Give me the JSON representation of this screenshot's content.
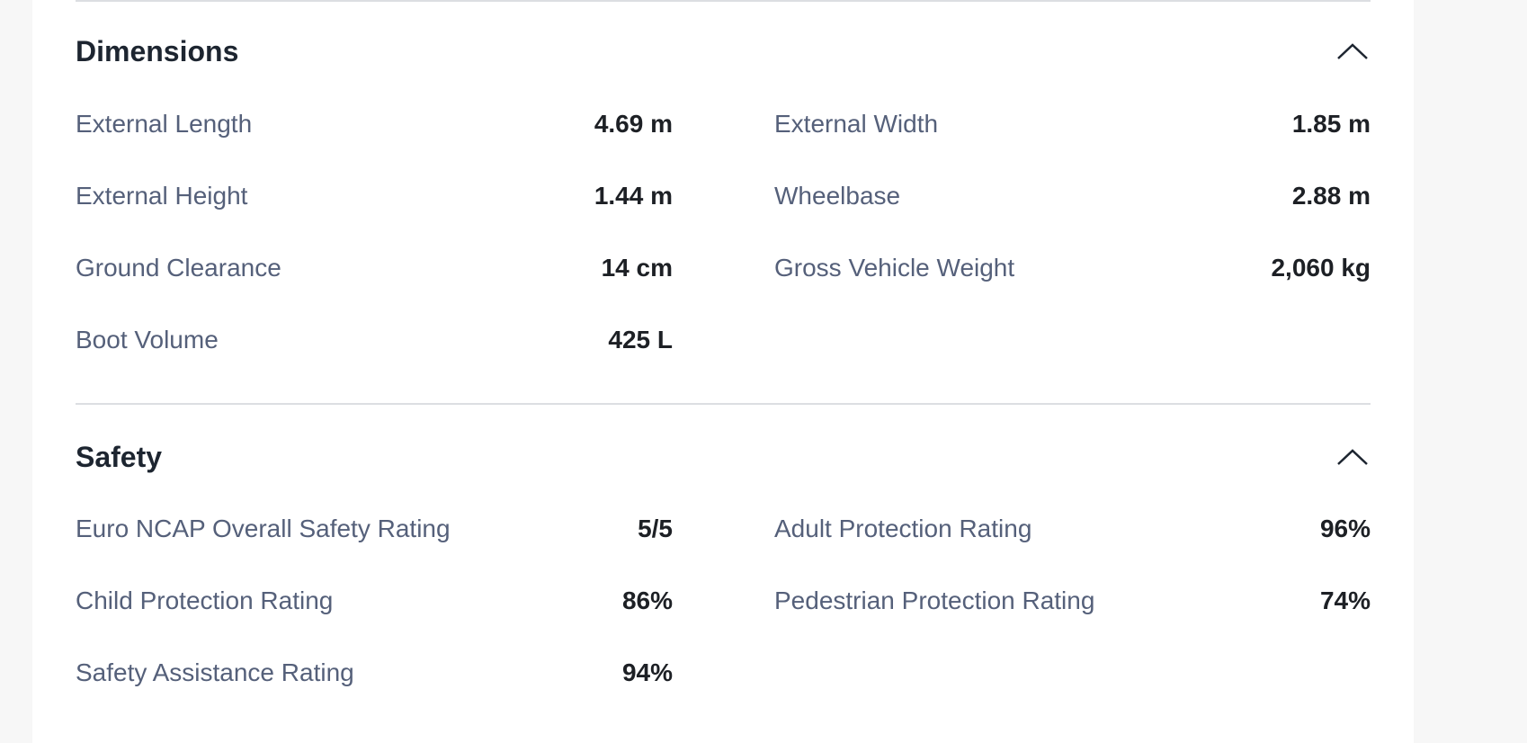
{
  "sections": [
    {
      "title": "Dimensions",
      "icon": "chevron-up-icon",
      "items": [
        {
          "label": "External Length",
          "value": "4.69 m"
        },
        {
          "label": "External Width",
          "value": "1.85 m"
        },
        {
          "label": "External Height",
          "value": "1.44 m"
        },
        {
          "label": "Wheelbase",
          "value": "2.88 m"
        },
        {
          "label": "Ground Clearance",
          "value": "14 cm"
        },
        {
          "label": "Gross Vehicle Weight",
          "value": "2,060 kg"
        },
        {
          "label": "Boot Volume",
          "value": "425 L"
        }
      ]
    },
    {
      "title": "Safety",
      "icon": "chevron-up-icon",
      "items": [
        {
          "label": "Euro NCAP Overall Safety Rating",
          "value": "5/5"
        },
        {
          "label": "Adult Protection Rating",
          "value": "96%"
        },
        {
          "label": "Child Protection Rating",
          "value": "86%"
        },
        {
          "label": "Pedestrian Protection Rating",
          "value": "74%"
        },
        {
          "label": "Safety Assistance Rating",
          "value": "94%"
        }
      ]
    }
  ]
}
